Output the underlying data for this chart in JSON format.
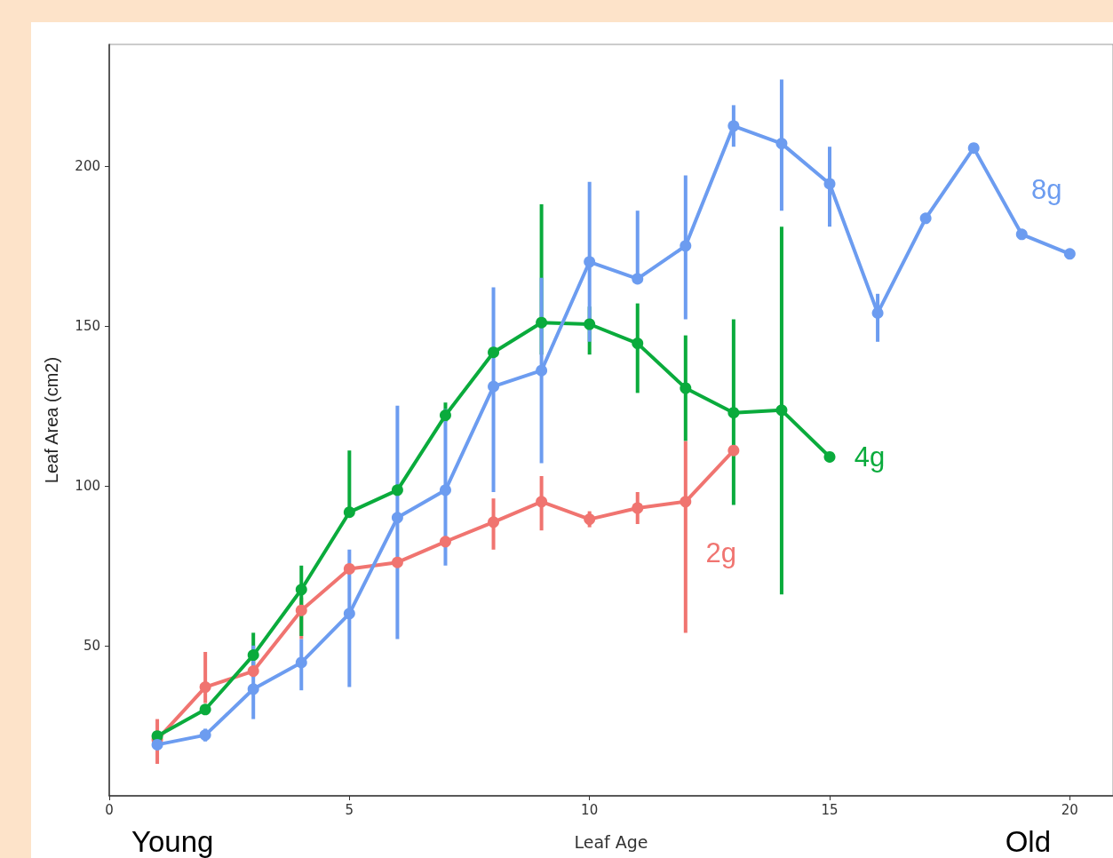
{
  "chart_data": {
    "type": "line",
    "xlabel": "Leaf Age",
    "ylabel": "Leaf Area (cm2)",
    "xlim": [
      0,
      20.9
    ],
    "xticks": [
      0,
      5,
      10,
      15,
      20
    ],
    "ylim": [
      3,
      238
    ],
    "yticks": [
      50,
      100,
      150,
      200
    ],
    "grid": false,
    "legend": false,
    "marker": "circle",
    "line_style": "solid",
    "annotations": [
      "Young",
      "Old"
    ],
    "series": [
      {
        "name": "2g",
        "color": "#f07470",
        "x": [
          1,
          2,
          3,
          4,
          5,
          6,
          7,
          8,
          9,
          10,
          11,
          12,
          13
        ],
        "values": [
          20.6,
          37,
          42,
          61,
          74,
          76,
          82.5,
          88.6,
          95,
          89.5,
          93,
          95,
          111
        ],
        "errors": [
          [
            13,
            27
          ],
          [
            32,
            48
          ],
          [
            40,
            45
          ],
          [
            52,
            65
          ],
          null,
          null,
          null,
          [
            80,
            96
          ],
          [
            86,
            103
          ],
          [
            87,
            92
          ],
          [
            88,
            98
          ],
          [
            54,
            114
          ],
          null
        ]
      },
      {
        "name": "4g",
        "color": "#0aab3c",
        "x": [
          1,
          2,
          3,
          4,
          5,
          6,
          7,
          8,
          9,
          10,
          11,
          12,
          13,
          14,
          15
        ],
        "values": [
          21.7,
          30,
          47,
          67.5,
          91.7,
          98.6,
          122,
          141.7,
          151,
          150.5,
          144.5,
          130.5,
          122.8,
          123.6,
          109
        ],
        "errors": [
          null,
          null,
          [
            41,
            54
          ],
          [
            53,
            75
          ],
          [
            91.7,
            111
          ],
          null,
          [
            120,
            126
          ],
          null,
          [
            141,
            188
          ],
          [
            141,
            156
          ],
          [
            129,
            157
          ],
          [
            114,
            147
          ],
          [
            94,
            152
          ],
          [
            66,
            181
          ],
          null
        ]
      },
      {
        "name": "8g",
        "color": "#6c9cf0",
        "x": [
          1,
          2,
          3,
          4,
          5,
          6,
          7,
          8,
          9,
          10,
          11,
          12,
          13,
          14,
          15,
          16,
          17,
          18,
          19,
          20
        ],
        "values": [
          19,
          22,
          36.4,
          44.7,
          60,
          90,
          98.6,
          131,
          136,
          170,
          164.7,
          175,
          212.5,
          207,
          194.4,
          154,
          183.6,
          205.6,
          178.6,
          172.5
        ],
        "errors": [
          null,
          [
            20,
            24
          ],
          [
            27,
            50
          ],
          [
            36,
            52
          ],
          [
            37,
            80
          ],
          [
            52,
            125
          ],
          [
            75,
            124
          ],
          [
            98,
            162
          ],
          [
            107,
            165
          ],
          [
            145,
            195
          ],
          [
            164.7,
            186
          ],
          [
            152,
            197
          ],
          [
            206,
            219
          ],
          [
            186,
            227
          ],
          [
            181,
            206
          ],
          [
            145,
            160
          ],
          null,
          null,
          null,
          null
        ]
      }
    ]
  }
}
